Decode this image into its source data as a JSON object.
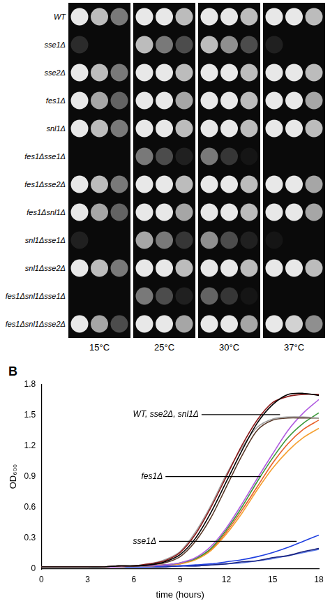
{
  "spot_assay": {
    "temperatures": [
      "15°C",
      "25°C",
      "30°C",
      "37°C"
    ],
    "strains": [
      {
        "label": "WT",
        "growth": [
          [
            1,
            0.8,
            0.5
          ],
          [
            1,
            1,
            0.8
          ],
          [
            1,
            1,
            0.8
          ],
          [
            1,
            1,
            0.8
          ]
        ]
      },
      {
        "label": "sse1Δ",
        "growth": [
          [
            0.15,
            0,
            0
          ],
          [
            0.8,
            0.5,
            0.3
          ],
          [
            0.8,
            0.6,
            0.3
          ],
          [
            0.1,
            0,
            0
          ]
        ]
      },
      {
        "label": "sse2Δ",
        "growth": [
          [
            1,
            0.8,
            0.5
          ],
          [
            1,
            1,
            0.8
          ],
          [
            1,
            1,
            0.8
          ],
          [
            1,
            1,
            0.8
          ]
        ]
      },
      {
        "label": "fes1Δ",
        "growth": [
          [
            1,
            0.7,
            0.4
          ],
          [
            1,
            1,
            0.7
          ],
          [
            1,
            1,
            0.8
          ],
          [
            1,
            1,
            0.7
          ]
        ]
      },
      {
        "label": "snl1Δ",
        "growth": [
          [
            1,
            0.8,
            0.5
          ],
          [
            1,
            1,
            0.8
          ],
          [
            1,
            1,
            0.8
          ],
          [
            1,
            1,
            0.8
          ]
        ]
      },
      {
        "label": "fes1Δsse1Δ",
        "growth": [
          [
            0,
            0,
            0
          ],
          [
            0.5,
            0.3,
            0.1
          ],
          [
            0.5,
            0.2,
            0.05
          ],
          [
            0,
            0,
            0
          ]
        ]
      },
      {
        "label": "fes1Δsse2Δ",
        "growth": [
          [
            1,
            0.8,
            0.5
          ],
          [
            1,
            1,
            0.8
          ],
          [
            1,
            1,
            0.8
          ],
          [
            1,
            1,
            0.7
          ]
        ]
      },
      {
        "label": "fes1Δsnl1Δ",
        "growth": [
          [
            1,
            0.7,
            0.4
          ],
          [
            1,
            1,
            0.7
          ],
          [
            1,
            1,
            0.8
          ],
          [
            1,
            1,
            0.7
          ]
        ]
      },
      {
        "label": "snl1Δsse1Δ",
        "growth": [
          [
            0.1,
            0,
            0
          ],
          [
            0.7,
            0.5,
            0.2
          ],
          [
            0.6,
            0.3,
            0.1
          ],
          [
            0.05,
            0,
            0
          ]
        ]
      },
      {
        "label": "snl1Δsse2Δ",
        "growth": [
          [
            1,
            0.8,
            0.5
          ],
          [
            1,
            1,
            0.8
          ],
          [
            1,
            1,
            0.8
          ],
          [
            1,
            1,
            0.8
          ]
        ]
      },
      {
        "label": "fes1Δsnl1Δsse1Δ",
        "growth": [
          [
            0,
            0,
            0
          ],
          [
            0.5,
            0.3,
            0.1
          ],
          [
            0.4,
            0.2,
            0.05
          ],
          [
            0,
            0,
            0
          ]
        ]
      },
      {
        "label": "fes1Δsnl1Δsse2Δ",
        "growth": [
          [
            1,
            0.7,
            0.3
          ],
          [
            1,
            1,
            0.7
          ],
          [
            1,
            1,
            0.7
          ],
          [
            1,
            0.9,
            0.6
          ]
        ]
      }
    ]
  },
  "chart_data": {
    "panel": "B",
    "type": "line",
    "x_label": "time (hours)",
    "y_label": "OD₆₀₀",
    "x": [
      0,
      1,
      2,
      3,
      4,
      5,
      6,
      7,
      8,
      9,
      10,
      11,
      12,
      13,
      14,
      15,
      16,
      17,
      18
    ],
    "xlim": [
      0,
      18
    ],
    "xticks": [
      0,
      3,
      6,
      9,
      12,
      15,
      18
    ],
    "ylim": [
      0,
      1.8
    ],
    "yticks": [
      0,
      0.3,
      0.6,
      0.9,
      1.2,
      1.5,
      1.8
    ],
    "grid": false,
    "annotations": [
      "WT, sse2Δ, snl1Δ",
      "fes1Δ",
      "sse1Δ"
    ],
    "series": [
      {
        "color": "#000000",
        "values": [
          0.02,
          0.02,
          0.02,
          0.02,
          0.02,
          0.03,
          0.03,
          0.04,
          0.07,
          0.14,
          0.3,
          0.55,
          0.85,
          1.15,
          1.42,
          1.6,
          1.7,
          1.71,
          1.69
        ]
      },
      {
        "color": "#8b1a1a",
        "values": [
          0.02,
          0.02,
          0.02,
          0.02,
          0.02,
          0.03,
          0.03,
          0.05,
          0.08,
          0.16,
          0.34,
          0.6,
          0.9,
          1.2,
          1.45,
          1.62,
          1.68,
          1.7,
          1.7
        ]
      },
      {
        "color": "#a0a0a0",
        "values": [
          0.02,
          0.02,
          0.02,
          0.02,
          0.02,
          0.03,
          0.03,
          0.05,
          0.09,
          0.17,
          0.36,
          0.62,
          0.92,
          1.18,
          1.38,
          1.46,
          1.48,
          1.48,
          1.47
        ]
      },
      {
        "color": "#5a3a2a",
        "values": [
          0.02,
          0.02,
          0.02,
          0.02,
          0.02,
          0.03,
          0.03,
          0.04,
          0.06,
          0.12,
          0.27,
          0.5,
          0.8,
          1.1,
          1.35,
          1.45,
          1.47,
          1.47,
          1.47
        ]
      },
      {
        "color": "#b05ce0",
        "values": [
          0.02,
          0.02,
          0.02,
          0.02,
          0.02,
          0.02,
          0.03,
          0.03,
          0.04,
          0.06,
          0.11,
          0.22,
          0.4,
          0.63,
          0.88,
          1.12,
          1.35,
          1.52,
          1.65
        ]
      },
      {
        "color": "#3a9a3a",
        "values": [
          0.02,
          0.02,
          0.02,
          0.02,
          0.02,
          0.02,
          0.03,
          0.03,
          0.04,
          0.06,
          0.1,
          0.2,
          0.38,
          0.6,
          0.85,
          1.08,
          1.28,
          1.42,
          1.52
        ]
      },
      {
        "color": "#f5a030",
        "values": [
          0.02,
          0.02,
          0.02,
          0.02,
          0.02,
          0.02,
          0.03,
          0.03,
          0.04,
          0.05,
          0.09,
          0.18,
          0.34,
          0.54,
          0.77,
          0.98,
          1.15,
          1.28,
          1.37
        ]
      },
      {
        "color": "#e8602a",
        "values": [
          0.02,
          0.02,
          0.02,
          0.02,
          0.02,
          0.02,
          0.03,
          0.03,
          0.04,
          0.05,
          0.1,
          0.19,
          0.36,
          0.57,
          0.8,
          1.03,
          1.22,
          1.36,
          1.45
        ]
      },
      {
        "color": "#2040e0",
        "values": [
          0.02,
          0.02,
          0.02,
          0.02,
          0.02,
          0.02,
          0.02,
          0.02,
          0.03,
          0.03,
          0.04,
          0.05,
          0.07,
          0.09,
          0.12,
          0.16,
          0.21,
          0.27,
          0.33
        ]
      },
      {
        "color": "#1a237e",
        "values": [
          0.02,
          0.02,
          0.02,
          0.02,
          0.02,
          0.02,
          0.02,
          0.02,
          0.02,
          0.03,
          0.03,
          0.04,
          0.05,
          0.07,
          0.08,
          0.11,
          0.13,
          0.17,
          0.2
        ]
      },
      {
        "color": "#5a7ae8",
        "values": [
          0.02,
          0.02,
          0.02,
          0.02,
          0.02,
          0.02,
          0.02,
          0.02,
          0.02,
          0.03,
          0.03,
          0.04,
          0.05,
          0.06,
          0.08,
          0.1,
          0.13,
          0.16,
          0.19
        ]
      }
    ]
  }
}
